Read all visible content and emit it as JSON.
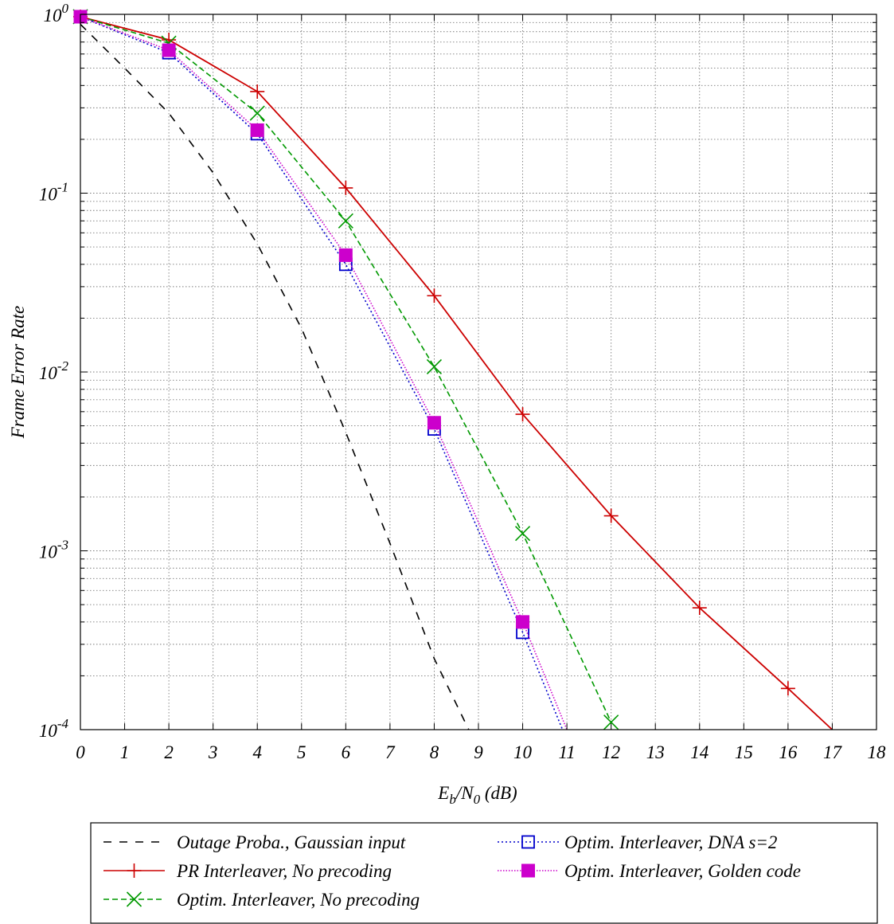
{
  "chart_data": {
    "type": "line",
    "xlabel": "E_b/N_0 (dB)",
    "xlabel_parts": {
      "E": "E",
      "b": "b",
      "slash": "/N",
      "zero": "0",
      "unit": " (dB)"
    },
    "ylabel": "Frame Error Rate",
    "xlim": [
      0,
      18
    ],
    "ylim": [
      0.0001,
      1
    ],
    "yscale": "log",
    "grid": true,
    "legend_position": "bottom",
    "x_ticks": [
      "0",
      "1",
      "2",
      "3",
      "4",
      "5",
      "6",
      "7",
      "8",
      "9",
      "10",
      "11",
      "12",
      "13",
      "14",
      "15",
      "16",
      "17",
      "18"
    ],
    "y_ticks": [
      {
        "base": "10",
        "exp": "0",
        "value": 1
      },
      {
        "base": "10",
        "exp": "-1",
        "value": 0.1
      },
      {
        "base": "10",
        "exp": "-2",
        "value": 0.01
      },
      {
        "base": "10",
        "exp": "-3",
        "value": 0.001
      },
      {
        "base": "10",
        "exp": "-4",
        "value": 0.0001
      }
    ],
    "series": [
      {
        "name": "Outage Proba., Gaussian input",
        "color": "#000000",
        "dash": "10,10",
        "marker": "none",
        "x": [
          0,
          1,
          2,
          3,
          4,
          5,
          6,
          7,
          8,
          8.78
        ],
        "y": [
          0.88,
          0.5,
          0.28,
          0.13,
          0.052,
          0.0175,
          0.0046,
          0.0011,
          0.00025,
          0.0001
        ]
      },
      {
        "name": "PR Interleaver, No precoding",
        "color": "#cc0000",
        "dash": "",
        "marker": "plus",
        "x": [
          0,
          2,
          4,
          6,
          8,
          10,
          12,
          14,
          16,
          17
        ],
        "y": [
          0.97,
          0.72,
          0.37,
          0.107,
          0.0267,
          0.0058,
          0.00157,
          0.00048,
          0.00017,
          0.0001
        ]
      },
      {
        "name": "Optim. Interleaver, No precoding",
        "color": "#009900",
        "dash": "7,4",
        "marker": "x",
        "x": [
          0,
          2,
          4,
          6,
          8,
          10,
          12
        ],
        "y": [
          0.97,
          0.69,
          0.28,
          0.07,
          0.0107,
          0.00125,
          0.00011
        ]
      },
      {
        "name": "Optim. Interleaver, DNA s=2",
        "color": "#0000cc",
        "dash": "2,3",
        "marker": "square-open",
        "x": [
          0,
          2,
          4,
          6,
          8,
          10,
          10.9
        ],
        "y": [
          0.97,
          0.61,
          0.215,
          0.04,
          0.0048,
          0.00035,
          0.0001
        ]
      },
      {
        "name": "Optim. Interleaver, Golden code",
        "color": "#cc00cc",
        "dash": "1.5,2",
        "marker": "square-filled",
        "x": [
          0,
          2,
          4,
          6,
          8,
          10,
          11
        ],
        "y": [
          0.97,
          0.63,
          0.225,
          0.045,
          0.0052,
          0.0004,
          0.0001
        ]
      }
    ]
  }
}
